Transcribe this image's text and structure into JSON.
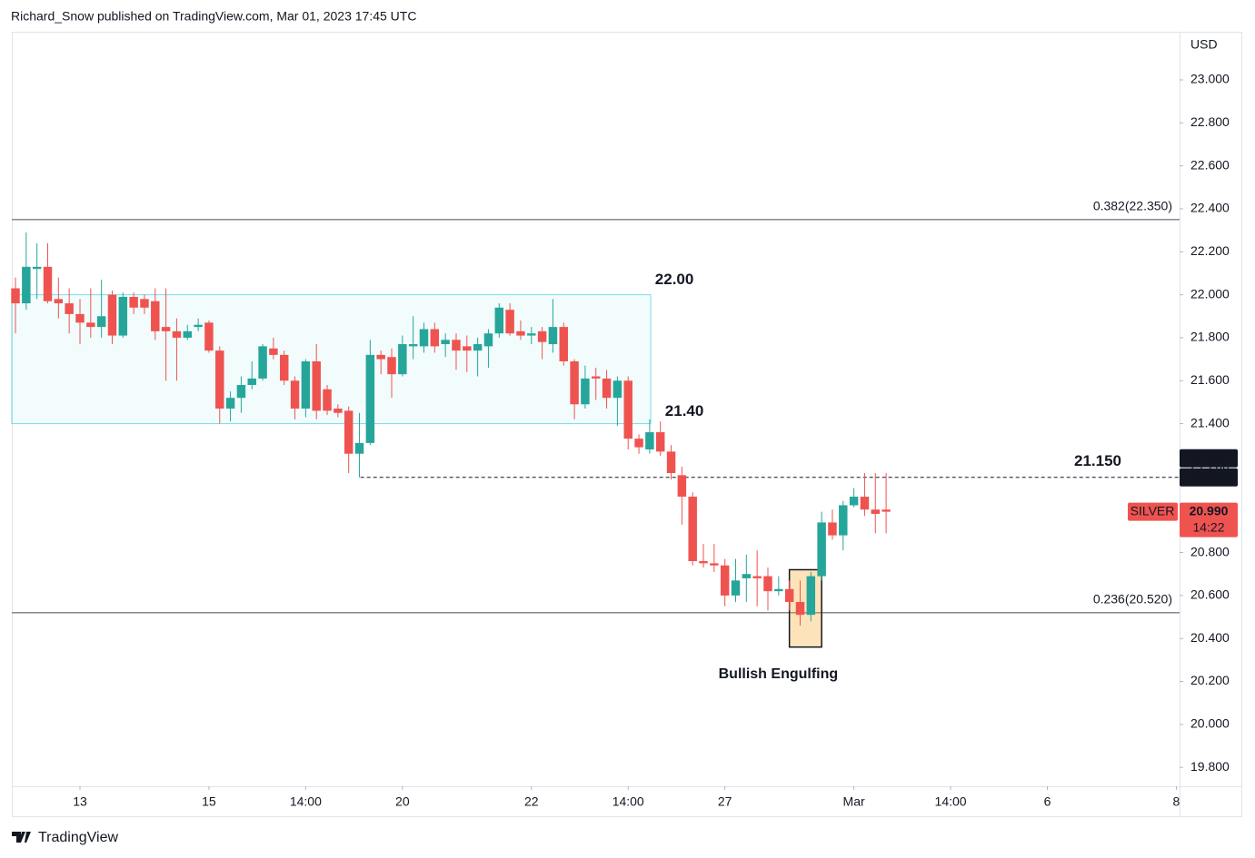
{
  "header": "Richard_Snow published on TradingView.com, Mar 01, 2023 17:45 UTC",
  "footer": "TradingView",
  "chart_data": {
    "type": "candlestick",
    "y_axis_label": "USD",
    "x": [
      -6,
      -5,
      -4,
      -3,
      -2,
      -1,
      0,
      1,
      2,
      3,
      4,
      5,
      6,
      7,
      8,
      9,
      10,
      11,
      12,
      13,
      14,
      15,
      16,
      17,
      18,
      19,
      20,
      21,
      22,
      23,
      24,
      25,
      26,
      27,
      28,
      29,
      30,
      31,
      32,
      33,
      34,
      35,
      36,
      37,
      38,
      39,
      40,
      41,
      42,
      43,
      44,
      45,
      46,
      47,
      48,
      49,
      50,
      51,
      52,
      53,
      54,
      55,
      56,
      57,
      58,
      59,
      60,
      61,
      62,
      63,
      64,
      65,
      66,
      67,
      68,
      69,
      70,
      71,
      72,
      73,
      74,
      75
    ],
    "open": [
      22.03,
      21.96,
      22.12,
      22.13,
      21.98,
      21.96,
      21.91,
      21.87,
      21.85,
      22.0,
      21.81,
      21.99,
      21.98,
      21.97,
      21.85,
      21.83,
      21.8,
      21.85,
      21.87,
      21.74,
      21.47,
      21.52,
      21.58,
      21.61,
      21.75,
      21.72,
      21.6,
      21.47,
      21.69,
      21.56,
      21.47,
      21.46,
      21.26,
      21.31,
      21.72,
      21.71,
      21.63,
      21.76,
      21.76,
      21.84,
      21.77,
      21.79,
      21.76,
      21.74,
      21.76,
      21.82,
      21.93,
      21.83,
      21.81,
      21.83,
      21.77,
      21.85,
      21.69,
      21.49,
      21.62,
      21.61,
      21.52,
      21.6,
      21.33,
      21.28,
      21.36,
      21.27,
      21.16,
      21.06,
      20.76,
      20.75,
      20.74,
      20.6,
      20.68,
      20.69,
      20.69,
      20.62,
      20.63,
      20.57,
      20.51,
      20.69,
      20.94,
      20.88,
      21.02,
      21.06,
      21.0,
      21.0
    ],
    "high": [
      22.08,
      22.29,
      22.24,
      22.24,
      22.08,
      22.03,
      21.98,
      22.03,
      22.07,
      22.02,
      22.01,
      22.01,
      22.0,
      22.03,
      22.03,
      21.89,
      21.86,
      21.89,
      21.88,
      21.76,
      21.55,
      21.62,
      21.69,
      21.77,
      21.8,
      21.74,
      21.62,
      21.7,
      21.77,
      21.58,
      21.49,
      21.48,
      21.45,
      21.79,
      21.74,
      21.75,
      21.81,
      21.9,
      21.87,
      21.87,
      21.82,
      21.82,
      21.81,
      21.8,
      21.84,
      21.96,
      21.96,
      21.88,
      21.85,
      21.85,
      21.98,
      21.87,
      21.7,
      21.67,
      21.66,
      21.65,
      21.62,
      21.62,
      21.35,
      21.42,
      21.41,
      21.3,
      21.2,
      21.08,
      20.84,
      20.84,
      20.77,
      20.77,
      20.79,
      20.81,
      20.73,
      20.69,
      20.67,
      20.67,
      20.71,
      20.99,
      21.0,
      21.04,
      21.1,
      21.17,
      21.17,
      21.17
    ],
    "low": [
      21.82,
      21.93,
      21.98,
      21.96,
      21.89,
      21.82,
      21.77,
      21.8,
      21.8,
      21.77,
      21.8,
      21.91,
      21.91,
      21.79,
      21.6,
      21.6,
      21.79,
      21.83,
      21.73,
      21.4,
      21.41,
      21.45,
      21.56,
      21.6,
      21.7,
      21.58,
      21.42,
      21.43,
      21.42,
      21.44,
      21.43,
      21.17,
      21.15,
      21.3,
      21.63,
      21.52,
      21.62,
      21.7,
      21.73,
      21.73,
      21.71,
      21.65,
      21.64,
      21.62,
      21.66,
      21.8,
      21.81,
      21.79,
      21.77,
      21.7,
      21.73,
      21.67,
      21.42,
      21.47,
      21.51,
      21.47,
      21.39,
      21.28,
      21.26,
      21.26,
      21.25,
      21.14,
      20.93,
      20.74,
      20.73,
      20.71,
      20.55,
      20.57,
      20.57,
      20.55,
      20.53,
      20.6,
      20.53,
      20.46,
      20.48,
      20.67,
      20.86,
      20.81,
      21.01,
      20.97,
      20.89,
      20.89
    ],
    "close": [
      21.96,
      22.13,
      22.13,
      21.97,
      21.96,
      21.91,
      21.87,
      21.85,
      21.9,
      21.81,
      21.99,
      21.94,
      21.94,
      21.83,
      21.83,
      21.8,
      21.83,
      21.86,
      21.74,
      21.47,
      21.52,
      21.58,
      21.61,
      21.76,
      21.72,
      21.6,
      21.47,
      21.69,
      21.46,
      21.46,
      21.45,
      21.26,
      21.31,
      21.72,
      21.7,
      21.63,
      21.77,
      21.77,
      21.84,
      21.76,
      21.79,
      21.74,
      21.74,
      21.77,
      21.82,
      21.94,
      21.82,
      21.81,
      21.82,
      21.78,
      21.85,
      21.69,
      21.49,
      21.61,
      21.61,
      21.52,
      21.6,
      21.33,
      21.29,
      21.36,
      21.27,
      21.17,
      21.06,
      20.76,
      20.75,
      20.74,
      20.6,
      20.67,
      20.7,
      20.68,
      20.62,
      20.63,
      20.57,
      20.51,
      20.69,
      20.94,
      20.88,
      21.02,
      21.06,
      21.0,
      20.98,
      20.99
    ],
    "up_color": "#26a69a",
    "down_color": "#ef5350",
    "xlim": [
      -6.34,
      102.3
    ],
    "xticks": [
      {
        "value": 0,
        "label": "13"
      },
      {
        "value": 12,
        "label": "15"
      },
      {
        "value": 21,
        "label": "14:00"
      },
      {
        "value": 30,
        "label": "20"
      },
      {
        "value": 42,
        "label": "22"
      },
      {
        "value": 51,
        "label": "14:00"
      },
      {
        "value": 60,
        "label": "27"
      },
      {
        "value": 72,
        "label": "Mar"
      },
      {
        "value": 81,
        "label": "14:00"
      },
      {
        "value": 90,
        "label": "6"
      },
      {
        "value": 102,
        "label": "8"
      }
    ],
    "ylim": [
      19.712,
      23.224
    ],
    "yticks": [
      {
        "value": 19.8,
        "label": "19.800"
      },
      {
        "value": 20,
        "label": "20.000"
      },
      {
        "value": 20.2,
        "label": "20.200"
      },
      {
        "value": 20.4,
        "label": "20.400"
      },
      {
        "value": 20.6,
        "label": "20.600"
      },
      {
        "value": 20.8,
        "label": "20.800"
      },
      {
        "value": 21,
        "label": "21.000"
      },
      {
        "value": 21.2,
        "label": "21.200"
      },
      {
        "value": 21.4,
        "label": "21.400"
      },
      {
        "value": 21.6,
        "label": "21.600"
      },
      {
        "value": 21.8,
        "label": "21.800"
      },
      {
        "value": 22,
        "label": "22.000"
      },
      {
        "value": 22.2,
        "label": "22.200"
      },
      {
        "value": 22.4,
        "label": "22.400"
      },
      {
        "value": 22.6,
        "label": "22.600"
      },
      {
        "value": 22.8,
        "label": "22.800"
      },
      {
        "value": 23,
        "label": "23.000"
      }
    ],
    "grid": false,
    "zone": {
      "top": {
        "value": 22,
        "label": "22.00"
      },
      "bottom": {
        "value": 21.4,
        "label": "21.40"
      },
      "x_end": 53.1,
      "color": "#26c6da"
    },
    "fib_levels": [
      {
        "value": 22.35,
        "label": "0.382(22.350)"
      },
      {
        "value": 20.52,
        "label": "0.236(20.520)"
      }
    ],
    "dashed_level": {
      "value": 21.15,
      "label": "21.150",
      "x_start": 26.1
    },
    "pattern": {
      "label": "Bullish Engulfing",
      "x_range": [
        66,
        69
      ],
      "y_range": [
        20.36,
        20.72
      ],
      "color": "#f7a21b"
    },
    "price_tags": [
      {
        "value": 21.156,
        "label": "21.156"
      },
      {
        "value": 21.15,
        "label": "21.150"
      }
    ],
    "last_price": {
      "symbol": "SILVER",
      "value": 20.99,
      "label": "20.990",
      "countdown": "14:22"
    }
  }
}
